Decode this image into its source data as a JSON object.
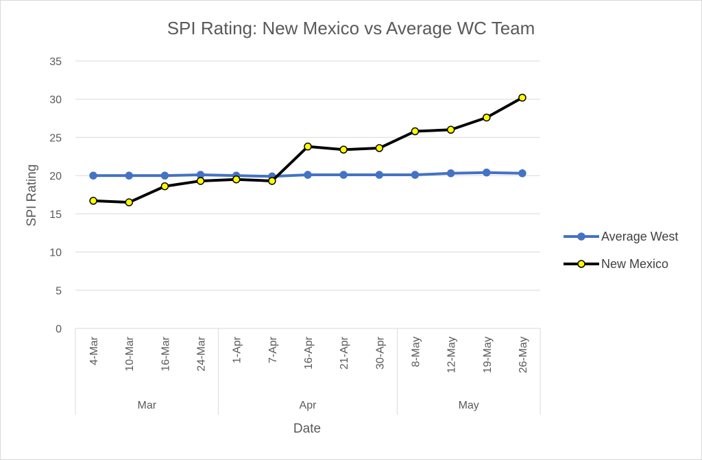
{
  "chart_data": {
    "type": "line",
    "title": "SPI Rating: New Mexico vs Average WC Team",
    "xlabel": "Date",
    "ylabel": "SPI Rating",
    "ylim": [
      0,
      35
    ],
    "yticks": [
      0,
      5,
      10,
      15,
      20,
      25,
      30,
      35
    ],
    "grid": true,
    "legend_position": "right",
    "categories": [
      "4-Mar",
      "10-Mar",
      "16-Mar",
      "24-Mar",
      "1-Apr",
      "7-Apr",
      "16-Apr",
      "21-Apr",
      "30-Apr",
      "8-May",
      "12-May",
      "19-May",
      "26-May"
    ],
    "groups": [
      {
        "label": "Mar",
        "count": 4
      },
      {
        "label": "Apr",
        "count": 5
      },
      {
        "label": "May",
        "count": 4
      }
    ],
    "series": [
      {
        "name": "Average West",
        "color": "#4472c4",
        "marker_color": "#4472c4",
        "values": [
          20.0,
          20.0,
          20.0,
          20.1,
          20.0,
          19.9,
          20.1,
          20.1,
          20.1,
          20.1,
          20.3,
          20.4,
          20.3
        ]
      },
      {
        "name": "New Mexico",
        "color": "#000000",
        "marker_color": "#ffff00",
        "values": [
          16.7,
          16.5,
          18.6,
          19.3,
          19.5,
          19.3,
          23.8,
          23.4,
          23.6,
          25.8,
          26.0,
          27.6,
          30.2
        ]
      }
    ]
  }
}
